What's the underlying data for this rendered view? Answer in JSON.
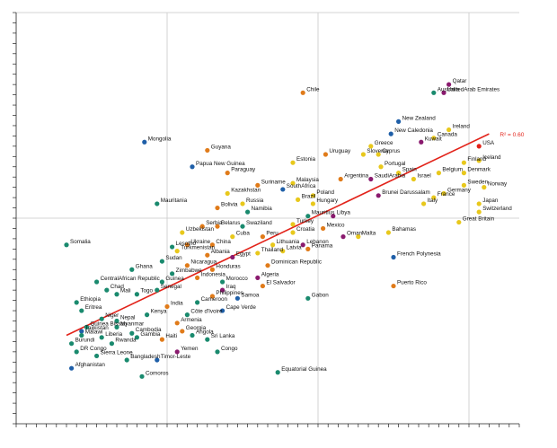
{
  "colors": {
    "grid": "#c8c8c8",
    "axis": "#222222",
    "trend": "#e2231a",
    "groups": {
      "teal": "#1a8a6e",
      "blue": "#1f5fa8",
      "orange": "#e07b1a",
      "yellow": "#e8c81c",
      "purple": "#8a1a6e"
    }
  },
  "chart_data": {
    "type": "scatter",
    "xlim": [
      0,
      100
    ],
    "ylim": [
      0,
      100
    ],
    "grid": true,
    "r2_label": "R² = 0.60",
    "trendline": [
      [
        10,
        21.5
      ],
      [
        94,
        70.5
      ]
    ],
    "points": [
      {
        "label": "Chile",
        "x": 57,
        "y": 80.5,
        "color": "orange"
      },
      {
        "label": "Australia",
        "x": 83,
        "y": 80.5,
        "color": "teal"
      },
      {
        "label": "Qatar",
        "x": 86,
        "y": 82.5,
        "color": "purple"
      },
      {
        "label": "UnitedArab Emirates",
        "x": 85,
        "y": 80.5,
        "color": "purple"
      },
      {
        "label": "New Zealand",
        "x": 76,
        "y": 73.5,
        "color": "blue"
      },
      {
        "label": "Ireland",
        "x": 86,
        "y": 71.5,
        "color": "yellow"
      },
      {
        "label": "New Caledonia",
        "x": 74.5,
        "y": 70.5,
        "color": "blue"
      },
      {
        "label": "Canada",
        "x": 83,
        "y": 69.5,
        "color": "yellow"
      },
      {
        "label": "Kuwait",
        "x": 80.5,
        "y": 68.5,
        "color": "purple"
      },
      {
        "label": "USA",
        "x": 92,
        "y": 67.5,
        "color": "red"
      },
      {
        "label": "Mongolia",
        "x": 25.5,
        "y": 68.5,
        "color": "blue"
      },
      {
        "label": "Greece",
        "x": 70.5,
        "y": 67.5,
        "color": "yellow"
      },
      {
        "label": "Guyana",
        "x": 38,
        "y": 66.5,
        "color": "orange"
      },
      {
        "label": "Uruguay",
        "x": 61.5,
        "y": 65.5,
        "color": "orange"
      },
      {
        "label": "Slovenia",
        "x": 69,
        "y": 65.5,
        "color": "yellow"
      },
      {
        "label": "Cyprus",
        "x": 72,
        "y": 65.5,
        "color": "yellow"
      },
      {
        "label": "Estonia",
        "x": 55,
        "y": 63.5,
        "color": "yellow"
      },
      {
        "label": "Finland",
        "x": 89,
        "y": 63.5,
        "color": "yellow"
      },
      {
        "label": "Iceland",
        "x": 92,
        "y": 64,
        "color": "yellow"
      },
      {
        "label": "Papua New Guinea",
        "x": 35,
        "y": 62.5,
        "color": "blue"
      },
      {
        "label": "Portugal",
        "x": 72.5,
        "y": 62.5,
        "color": "yellow"
      },
      {
        "label": "Paraguay",
        "x": 42,
        "y": 61,
        "color": "orange"
      },
      {
        "label": "Spain",
        "x": 76,
        "y": 61,
        "color": "yellow"
      },
      {
        "label": "Belgium",
        "x": 84,
        "y": 61,
        "color": "yellow"
      },
      {
        "label": "Denmark",
        "x": 89,
        "y": 61,
        "color": "yellow"
      },
      {
        "label": "Argentina",
        "x": 64.5,
        "y": 59.5,
        "color": "orange"
      },
      {
        "label": "SaudiArabia",
        "x": 70.5,
        "y": 59.5,
        "color": "purple"
      },
      {
        "label": "Israel",
        "x": 79,
        "y": 59.5,
        "color": "yellow"
      },
      {
        "label": "Malaysia",
        "x": 55,
        "y": 58.5,
        "color": "yellow"
      },
      {
        "label": "Suriname",
        "x": 48,
        "y": 58,
        "color": "orange"
      },
      {
        "label": "SouthAfrica",
        "x": 53,
        "y": 57,
        "color": "blue"
      },
      {
        "label": "Sweden",
        "x": 89,
        "y": 58,
        "color": "yellow"
      },
      {
        "label": "Norway",
        "x": 93,
        "y": 57.5,
        "color": "yellow"
      },
      {
        "label": "Kazakhstan",
        "x": 42,
        "y": 56,
        "color": "yellow"
      },
      {
        "label": "Germany",
        "x": 85,
        "y": 56,
        "color": "yellow"
      },
      {
        "label": "Poland",
        "x": 59,
        "y": 55.5,
        "color": "yellow"
      },
      {
        "label": "Brunei Darussalam",
        "x": 72,
        "y": 55.5,
        "color": "purple"
      },
      {
        "label": "France",
        "x": 83,
        "y": 55,
        "color": "yellow"
      },
      {
        "label": "Brazil",
        "x": 56,
        "y": 54.5,
        "color": "yellow"
      },
      {
        "label": "Hungary",
        "x": 59,
        "y": 53.5,
        "color": "yellow"
      },
      {
        "label": "Russia",
        "x": 45,
        "y": 53.5,
        "color": "yellow"
      },
      {
        "label": "Italy",
        "x": 81,
        "y": 53.5,
        "color": "yellow"
      },
      {
        "label": "Mauritania",
        "x": 28,
        "y": 53.5,
        "color": "teal"
      },
      {
        "label": "Bolivia",
        "x": 40,
        "y": 52.5,
        "color": "orange"
      },
      {
        "label": "Namibia",
        "x": 46,
        "y": 51.5,
        "color": "teal"
      },
      {
        "label": "Japan",
        "x": 92,
        "y": 53.5,
        "color": "yellow"
      },
      {
        "label": "Switzerland",
        "x": 92,
        "y": 51.5,
        "color": "yellow"
      },
      {
        "label": "Mauritius",
        "x": 58,
        "y": 50.5,
        "color": "teal"
      },
      {
        "label": "Libya",
        "x": 63,
        "y": 50.5,
        "color": "purple"
      },
      {
        "label": "Turkey",
        "x": 55,
        "y": 48.5,
        "color": "yellow"
      },
      {
        "label": "Great Britain",
        "x": 88,
        "y": 49,
        "color": "yellow"
      },
      {
        "label": "Serbia",
        "x": 37,
        "y": 48,
        "color": "orange"
      },
      {
        "label": "Belarus",
        "x": 40,
        "y": 48,
        "color": "orange"
      },
      {
        "label": "Swaziland",
        "x": 45,
        "y": 48,
        "color": "teal"
      },
      {
        "label": "Mexico",
        "x": 61,
        "y": 47.5,
        "color": "orange"
      },
      {
        "label": "Croatia",
        "x": 55,
        "y": 46.5,
        "color": "yellow"
      },
      {
        "label": "Bahamas",
        "x": 74,
        "y": 46.5,
        "color": "yellow"
      },
      {
        "label": "Uzbekistan",
        "x": 33,
        "y": 46.5,
        "color": "yellow"
      },
      {
        "label": "Cuba",
        "x": 43,
        "y": 45.5,
        "color": "yellow"
      },
      {
        "label": "Peru",
        "x": 49,
        "y": 45.5,
        "color": "orange"
      },
      {
        "label": "Oman",
        "x": 65,
        "y": 45.5,
        "color": "purple"
      },
      {
        "label": "Malta",
        "x": 68,
        "y": 45.5,
        "color": "yellow"
      },
      {
        "label": "Somalia",
        "x": 10,
        "y": 43.5,
        "color": "teal"
      },
      {
        "label": "Ukraine",
        "x": 34,
        "y": 43.5,
        "color": "orange"
      },
      {
        "label": "China",
        "x": 39,
        "y": 43.5,
        "color": "orange"
      },
      {
        "label": "Lithuania",
        "x": 51,
        "y": 43.5,
        "color": "yellow"
      },
      {
        "label": "Lebanon",
        "x": 57,
        "y": 43.5,
        "color": "purple"
      },
      {
        "label": "Lesotho",
        "x": 31,
        "y": 43,
        "color": "teal"
      },
      {
        "label": "Panama",
        "x": 58,
        "y": 42.5,
        "color": "orange"
      },
      {
        "label": "Turkmenistan",
        "x": 32,
        "y": 42,
        "color": "yellow"
      },
      {
        "label": "Latvia",
        "x": 53,
        "y": 42,
        "color": "yellow"
      },
      {
        "label": "Thailand",
        "x": 48,
        "y": 41.5,
        "color": "yellow"
      },
      {
        "label": "Albania",
        "x": 38,
        "y": 41,
        "color": "orange"
      },
      {
        "label": "Egypt",
        "x": 43,
        "y": 40.5,
        "color": "purple"
      },
      {
        "label": "French Polynesia",
        "x": 75,
        "y": 40.5,
        "color": "blue"
      },
      {
        "label": "Sudan",
        "x": 29,
        "y": 39.5,
        "color": "teal"
      },
      {
        "label": "Nicaragua",
        "x": 34,
        "y": 38.5,
        "color": "orange"
      },
      {
        "label": "Dominican Republic",
        "x": 50,
        "y": 38.5,
        "color": "orange"
      },
      {
        "label": "Honduras",
        "x": 39,
        "y": 37.5,
        "color": "orange"
      },
      {
        "label": "Ghana",
        "x": 23,
        "y": 37.5,
        "color": "teal"
      },
      {
        "label": "Zimbabwe",
        "x": 31,
        "y": 36.5,
        "color": "teal"
      },
      {
        "label": "Indonesia",
        "x": 36,
        "y": 35.5,
        "color": "orange"
      },
      {
        "label": "Algeria",
        "x": 48,
        "y": 35.5,
        "color": "purple"
      },
      {
        "label": "CentralAfrican Republic",
        "x": 16,
        "y": 34.5,
        "color": "teal"
      },
      {
        "label": "Guinea",
        "x": 29,
        "y": 34.5,
        "color": "teal"
      },
      {
        "label": "Morocco",
        "x": 41,
        "y": 34.5,
        "color": "teal"
      },
      {
        "label": "Puerto Rico",
        "x": 75,
        "y": 33.5,
        "color": "orange"
      },
      {
        "label": "El Salvador",
        "x": 49,
        "y": 33.5,
        "color": "orange"
      },
      {
        "label": "Chad",
        "x": 18,
        "y": 32.5,
        "color": "teal"
      },
      {
        "label": "Senegal",
        "x": 28,
        "y": 32.5,
        "color": "teal"
      },
      {
        "label": "Iraq",
        "x": 41,
        "y": 32.5,
        "color": "purple"
      },
      {
        "label": "Mali",
        "x": 20,
        "y": 31.5,
        "color": "teal"
      },
      {
        "label": "Togo",
        "x": 24,
        "y": 31.5,
        "color": "teal"
      },
      {
        "label": "Philippines",
        "x": 39,
        "y": 31,
        "color": "orange"
      },
      {
        "label": "Gabon",
        "x": 58,
        "y": 30.5,
        "color": "teal"
      },
      {
        "label": "Samoa",
        "x": 44,
        "y": 30.5,
        "color": "blue"
      },
      {
        "label": "Ethiopia",
        "x": 12,
        "y": 29.5,
        "color": "teal"
      },
      {
        "label": "Cameroon",
        "x": 36,
        "y": 29.5,
        "color": "teal"
      },
      {
        "label": "India",
        "x": 30,
        "y": 28.5,
        "color": "orange"
      },
      {
        "label": "Eritrea",
        "x": 13,
        "y": 27.5,
        "color": "teal"
      },
      {
        "label": "Cape Verde",
        "x": 41,
        "y": 27.5,
        "color": "blue"
      },
      {
        "label": "Kenya",
        "x": 26,
        "y": 26.5,
        "color": "teal"
      },
      {
        "label": "Côte d'Ivoire",
        "x": 34,
        "y": 26.5,
        "color": "teal"
      },
      {
        "label": "Niger",
        "x": 17,
        "y": 25.5,
        "color": "teal"
      },
      {
        "label": "Nepal",
        "x": 20,
        "y": 25,
        "color": "teal"
      },
      {
        "label": "Armenia",
        "x": 32,
        "y": 24.5,
        "color": "orange"
      },
      {
        "label": "Guinea Bissau",
        "x": 14,
        "y": 23.5,
        "color": "teal"
      },
      {
        "label": "Myanmar",
        "x": 20,
        "y": 23.5,
        "color": "teal"
      },
      {
        "label": "Tajikistan",
        "x": 13,
        "y": 22.5,
        "color": "blue"
      },
      {
        "label": "Cambodia",
        "x": 23,
        "y": 22,
        "color": "teal"
      },
      {
        "label": "Georgia",
        "x": 33,
        "y": 22.5,
        "color": "orange"
      },
      {
        "label": "Malawi",
        "x": 13,
        "y": 21.5,
        "color": "teal"
      },
      {
        "label": "Liberia",
        "x": 17,
        "y": 21,
        "color": "teal"
      },
      {
        "label": "Gambia",
        "x": 24,
        "y": 21,
        "color": "teal"
      },
      {
        "label": "Haiti",
        "x": 29,
        "y": 20.5,
        "color": "orange"
      },
      {
        "label": "Angola",
        "x": 35,
        "y": 21.5,
        "color": "teal"
      },
      {
        "label": "Burundi",
        "x": 11,
        "y": 19.5,
        "color": "teal"
      },
      {
        "label": "Rwanda",
        "x": 19,
        "y": 19.5,
        "color": "teal"
      },
      {
        "label": "Sri Lanka",
        "x": 38,
        "y": 20.5,
        "color": "teal"
      },
      {
        "label": "DR Congo",
        "x": 12,
        "y": 17.5,
        "color": "teal"
      },
      {
        "label": "Yemen",
        "x": 32,
        "y": 17.5,
        "color": "purple"
      },
      {
        "label": "Congo",
        "x": 40,
        "y": 17.5,
        "color": "teal"
      },
      {
        "label": "Sierra Leone",
        "x": 16,
        "y": 16.5,
        "color": "teal"
      },
      {
        "label": "Bangladesh",
        "x": 22,
        "y": 15.5,
        "color": "teal"
      },
      {
        "label": "Timor-Leste",
        "x": 28,
        "y": 15.5,
        "color": "blue"
      },
      {
        "label": "Afghanistan",
        "x": 11,
        "y": 13.5,
        "color": "blue"
      },
      {
        "label": "Equatorial Guinea",
        "x": 52,
        "y": 12.5,
        "color": "teal"
      },
      {
        "label": "Comoros",
        "x": 25,
        "y": 11.5,
        "color": "teal"
      }
    ]
  }
}
